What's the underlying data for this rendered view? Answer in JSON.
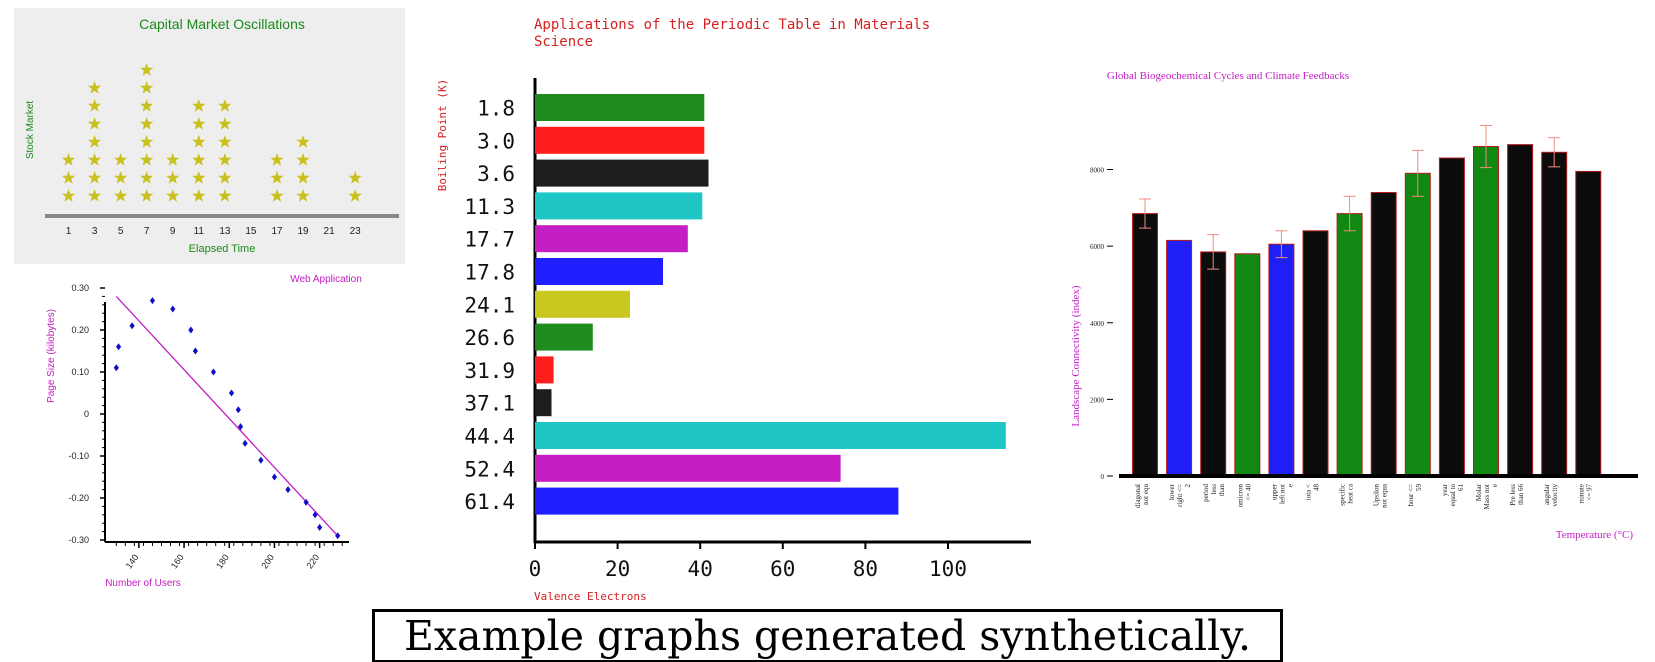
{
  "caption": "Example graphs generated synthetically.",
  "chart_data": [
    {
      "id": "pictograph",
      "type": "bar",
      "title": "Capital Market Oscillations",
      "xlabel": "Elapsed Time",
      "ylabel": "Stock Market",
      "x": [
        1,
        3,
        5,
        7,
        9,
        11,
        13,
        15,
        17,
        19,
        21,
        23
      ],
      "xticks": [
        "1",
        "3",
        "5",
        "7",
        "9",
        "11",
        "13",
        "15",
        "17",
        "19",
        "21",
        "23"
      ],
      "values": [
        3,
        7,
        3,
        8,
        3,
        6,
        6,
        0,
        3,
        4,
        0,
        2
      ],
      "marker": "star",
      "background": "#eeeeee",
      "marker_color": "#c9c21e",
      "text_color": "#1b8a1b"
    },
    {
      "id": "scatter",
      "type": "scatter",
      "title": "Web Application",
      "xlabel": "Number of Users",
      "ylabel": "Page Size (kilobytes)",
      "xlim": [
        125,
        233
      ],
      "ylim": [
        -0.31,
        0.31
      ],
      "xticks": [
        "140",
        "160",
        "180",
        "200",
        "220"
      ],
      "yticks": [
        "0.30",
        "0.20",
        "0.10",
        "0",
        "-0.10",
        "-0.20",
        "-0.30"
      ],
      "points": [
        [
          130,
          0.11
        ],
        [
          131,
          0.16
        ],
        [
          137,
          0.21
        ],
        [
          146,
          0.27
        ],
        [
          155,
          0.25
        ],
        [
          163,
          0.2
        ],
        [
          165,
          0.15
        ],
        [
          173,
          0.1
        ],
        [
          181,
          0.05
        ],
        [
          184,
          0.01
        ],
        [
          185,
          -0.03
        ],
        [
          187,
          -0.07
        ],
        [
          194,
          -0.11
        ],
        [
          200,
          -0.15
        ],
        [
          206,
          -0.18
        ],
        [
          214,
          -0.21
        ],
        [
          218,
          -0.24
        ],
        [
          220,
          -0.27
        ],
        [
          228,
          -0.29
        ]
      ],
      "trend": [
        [
          130,
          0.28
        ],
        [
          228,
          -0.29
        ]
      ],
      "point_color": "#1010c8",
      "line_color": "#c21cc2",
      "text_color": "#c21cc2"
    },
    {
      "id": "hbar",
      "type": "bar",
      "orientation": "horizontal",
      "title": "Applications of the Periodic Table in Materials Science",
      "title_lines": [
        "Applications of the Periodic Table in Materials",
        "Science"
      ],
      "xlabel": "Valence Electrons",
      "ylabel": "Boiling Point (K)",
      "xlim": [
        0,
        120
      ],
      "xticks": [
        0,
        20,
        40,
        60,
        80,
        100
      ],
      "categories": [
        "1.8",
        "3.0",
        "3.6",
        "11.3",
        "17.7",
        "17.8",
        "24.1",
        "26.6",
        "31.9",
        "37.1",
        "44.4",
        "52.4",
        "61.4"
      ],
      "values": [
        41,
        41,
        42,
        40.5,
        37,
        31,
        23,
        14,
        4.5,
        4,
        114,
        74,
        88
      ],
      "colors": [
        "#1e8c1e",
        "#ff1e1e",
        "#1e1e1e",
        "#1ec6c6",
        "#c41ec4",
        "#1e1eff",
        "#c8c81e",
        "#1e8c1e",
        "#ff1e1e",
        "#1e1e1e",
        "#1ec6c6",
        "#c41ec4",
        "#1e1eff"
      ],
      "text_color": "#d42020"
    },
    {
      "id": "vbar",
      "type": "bar",
      "title": "Global Biogeochemical Cycles and Climate Feedbacks",
      "xlabel": "Temperature (°C)",
      "ylabel": "Landscape Connectivity (index)",
      "ylim": [
        0,
        9000
      ],
      "yticks": [
        0,
        2000,
        4000,
        6000,
        8000
      ],
      "categories": [
        [
          "diagonal",
          "not equ"
        ],
        [
          "lower",
          "right <=",
          "2"
        ],
        [
          "period",
          "less",
          "than"
        ],
        [
          "omicron",
          "<= 40"
        ],
        [
          "upper",
          "left not",
          "e"
        ],
        [
          "iota <",
          "48"
        ],
        [
          "specific",
          "heat ca"
        ],
        [
          "Upsilon",
          "not equa"
        ],
        [
          "hour <=",
          "59"
        ],
        [
          "year",
          "equal to",
          "61"
        ],
        [
          "Molar",
          "Mass not",
          "e"
        ],
        [
          "Pre less",
          "than 66"
        ],
        [
          "angular",
          "velocity"
        ],
        [
          "minute",
          "<= 97"
        ]
      ],
      "values": [
        6850,
        6150,
        5850,
        5800,
        6050,
        6400,
        6850,
        7400,
        7900,
        8300,
        8600,
        8650,
        8450,
        7950
      ],
      "errors": [
        380,
        0,
        450,
        0,
        350,
        0,
        450,
        0,
        600,
        0,
        550,
        0,
        380,
        0
      ],
      "colors": [
        "#0c0c0c",
        "#1e1ef5",
        "#0c0c0c",
        "#118811",
        "#1e1ef5",
        "#0c0c0c",
        "#118811",
        "#0c0c0c",
        "#118811",
        "#0c0c0c",
        "#118811",
        "#0c0c0c",
        "#0c0c0c",
        "#0c0c0c"
      ],
      "edge_color": "#b51c1c",
      "error_color": "#f08a80",
      "text_color": "#c21cc2"
    }
  ]
}
